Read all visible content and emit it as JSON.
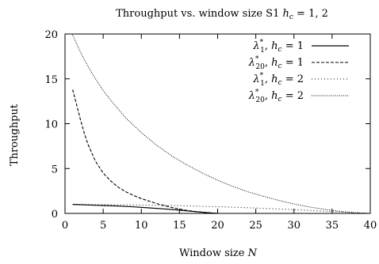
{
  "chart_data": {
    "type": "line",
    "title": {
      "text": "Throughput vs. window size S1 ",
      "var": "h",
      "sub": "c",
      "rest": " = 1, 2"
    },
    "xlabel": {
      "text": "Window size ",
      "var": "N"
    },
    "ylabel": "Throughput",
    "xlim": [
      0,
      40
    ],
    "ylim": [
      0,
      20
    ],
    "x_ticks": [
      0,
      5,
      10,
      15,
      20,
      25,
      30,
      35,
      40
    ],
    "y_ticks": [
      0,
      5,
      10,
      15,
      20
    ],
    "grid": false,
    "legend_position": "top-right",
    "series": [
      {
        "name": "λ*1, hc = 1",
        "legend": {
          "sym": "λ",
          "sub": "1",
          "sup": "*",
          "tail_var": "h",
          "tail_sub": "c",
          "tail_rest": " = 1"
        },
        "dash": "solid",
        "x": [
          1,
          3,
          5,
          7,
          9,
          11,
          13,
          15,
          17,
          19,
          20
        ],
        "y": [
          1.0,
          0.94,
          0.88,
          0.82,
          0.73,
          0.62,
          0.5,
          0.36,
          0.2,
          0.05,
          0.0
        ]
      },
      {
        "name": "λ*20, hc = 1",
        "legend": {
          "sym": "λ",
          "sub": "20",
          "sup": "*",
          "tail_var": "h",
          "tail_sub": "c",
          "tail_rest": " = 1"
        },
        "dash": "dashed",
        "x": [
          1,
          1.5,
          2,
          2.5,
          3,
          4,
          5,
          6,
          7,
          8,
          9,
          10,
          12,
          14,
          16,
          18,
          20
        ],
        "y": [
          13.8,
          12.2,
          10.5,
          9.0,
          7.7,
          5.8,
          4.5,
          3.6,
          2.9,
          2.4,
          2.0,
          1.65,
          1.1,
          0.65,
          0.33,
          0.12,
          0.0
        ]
      },
      {
        "name": "λ*1, hc = 2",
        "legend": {
          "sym": "λ",
          "sub": "1",
          "sup": "*",
          "tail_var": "h",
          "tail_sub": "c",
          "tail_rest": " = 2"
        },
        "dash": "dotted-fine",
        "x": [
          1,
          5,
          10,
          15,
          20,
          25,
          30,
          35,
          40
        ],
        "y": [
          1.0,
          0.97,
          0.93,
          0.86,
          0.75,
          0.6,
          0.42,
          0.2,
          0.0
        ]
      },
      {
        "name": "λ*20, hc = 2",
        "legend": {
          "sym": "λ",
          "sub": "20",
          "sup": "*",
          "tail_var": "h",
          "tail_sub": "c",
          "tail_rest": " = 2"
        },
        "dash": "dotted",
        "x": [
          1,
          2,
          3,
          4,
          5,
          6,
          8,
          10,
          12,
          14,
          16,
          18,
          20,
          22,
          24,
          26,
          28,
          30,
          32,
          34,
          36,
          38,
          40
        ],
        "y": [
          19.9,
          18.0,
          16.4,
          15.0,
          13.7,
          12.6,
          10.6,
          9.0,
          7.6,
          6.4,
          5.4,
          4.5,
          3.7,
          3.0,
          2.4,
          1.9,
          1.45,
          1.05,
          0.72,
          0.45,
          0.23,
          0.08,
          0.0
        ]
      }
    ]
  }
}
